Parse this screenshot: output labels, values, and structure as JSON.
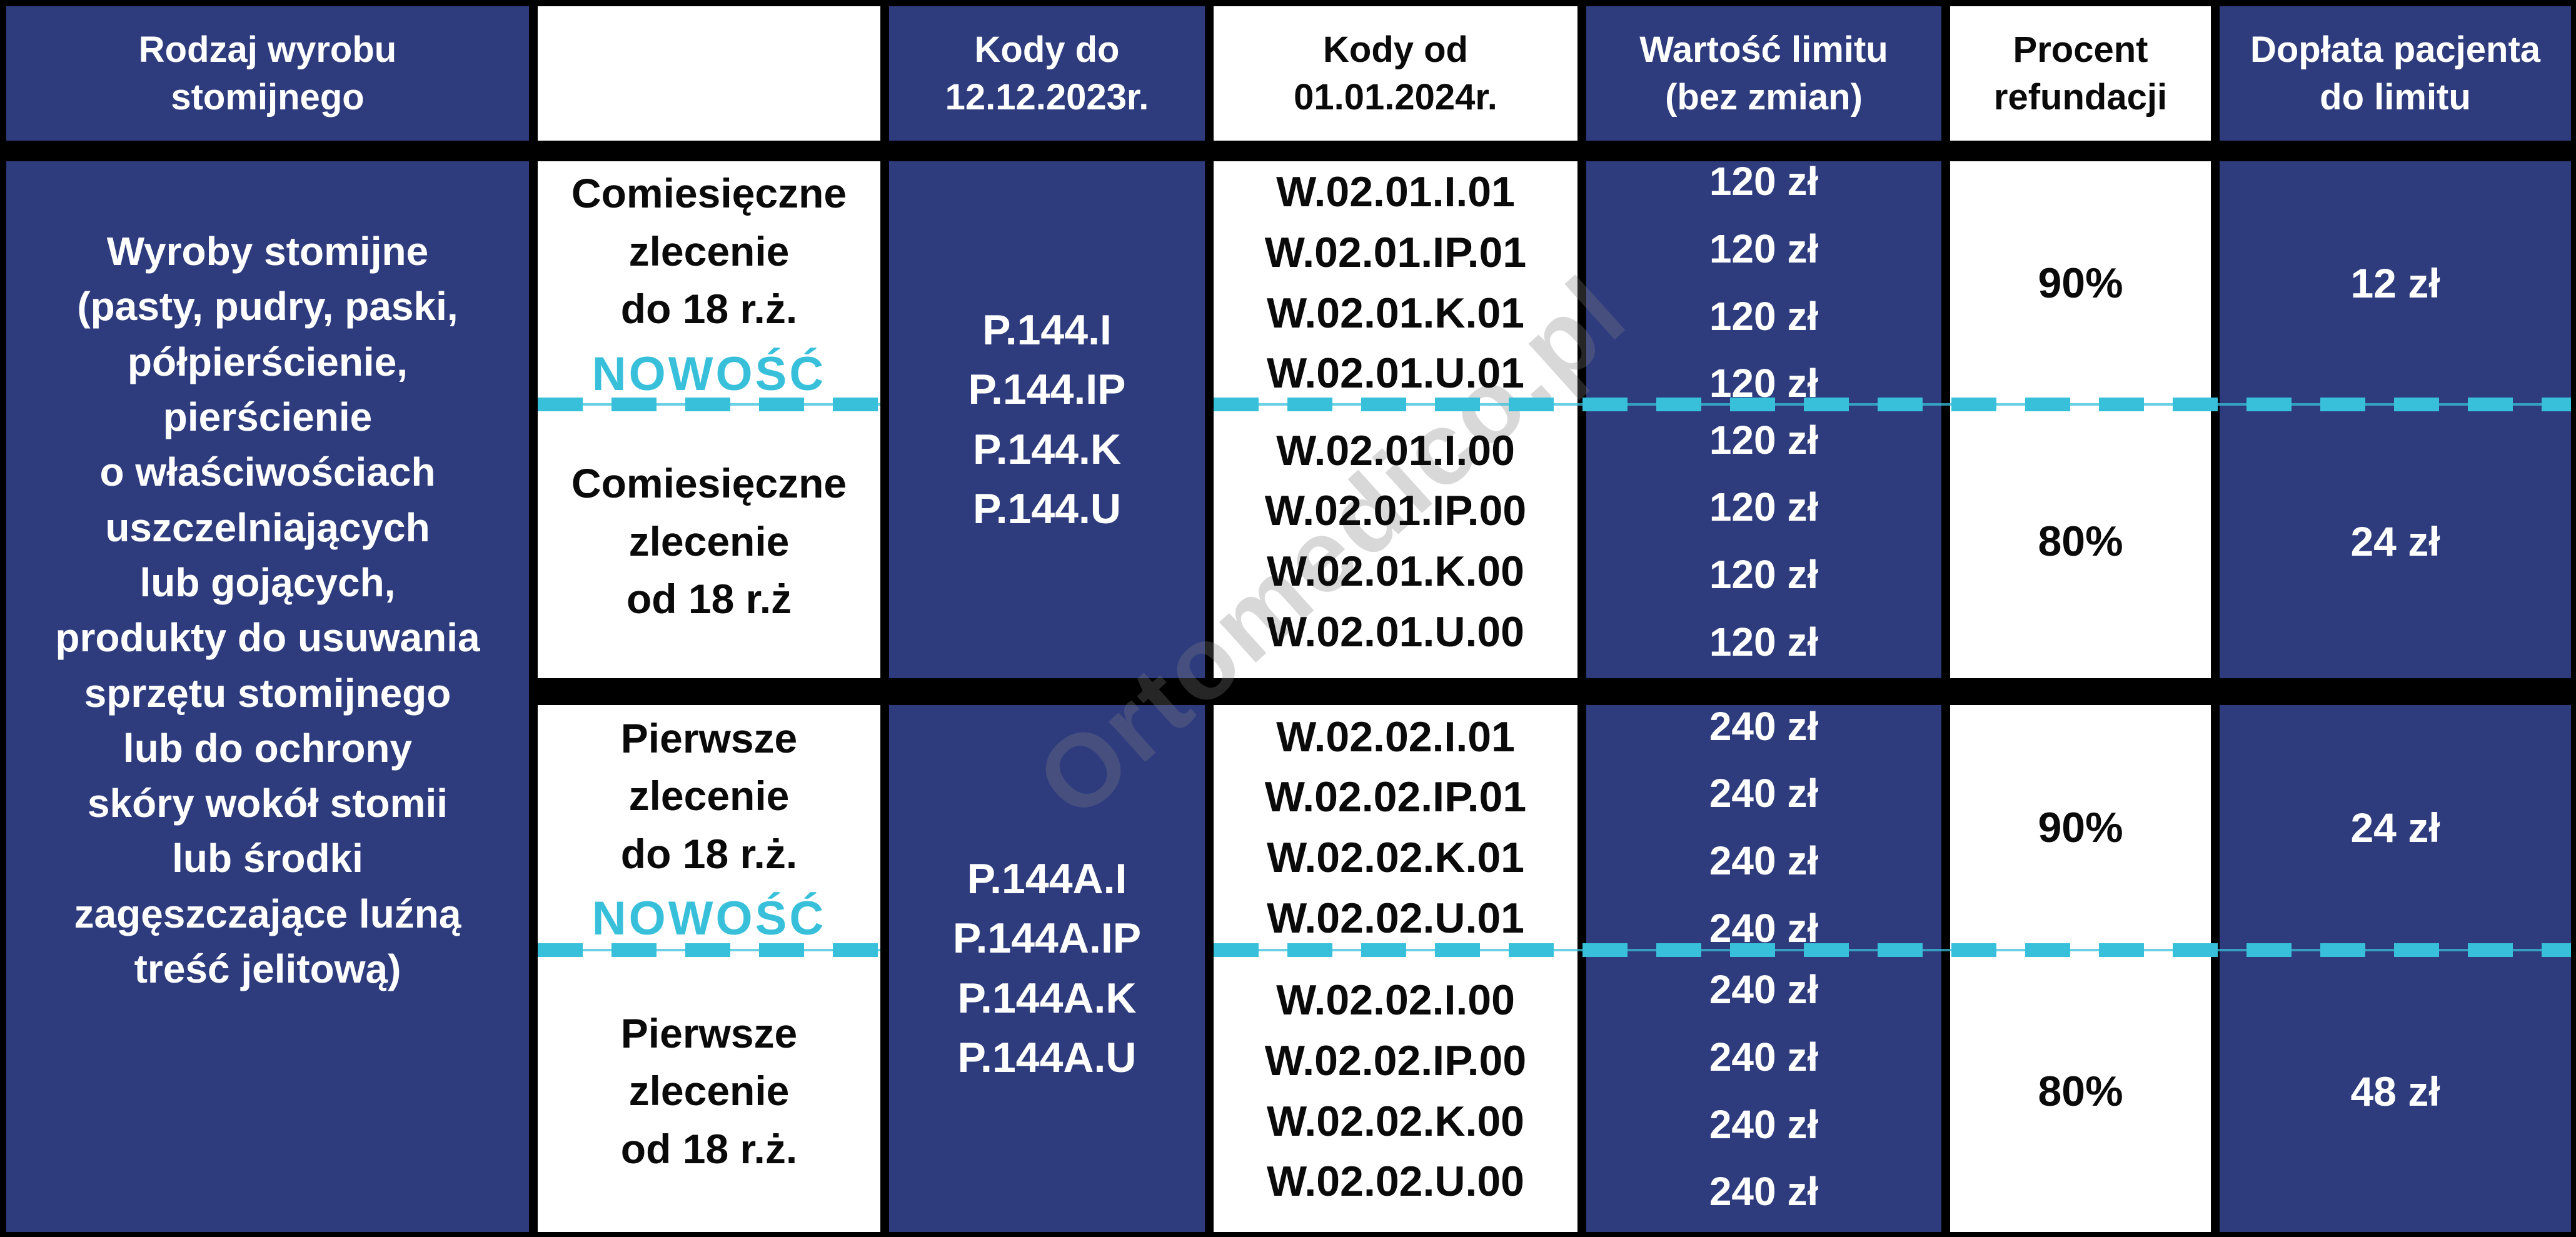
{
  "headers": [
    "Rodzaj wyrobu\nstomijnego",
    "",
    "Kody do\n12.12.2023r.",
    "Kody od\n01.01.2024r.",
    "Wartość limitu\n(bez zmian)",
    "Procent\nrefundacji",
    "Dopłata pacjenta\ndo limitu"
  ],
  "category": "Wyroby stomijne\n(pasty, pudry, paski,\npółpierścienie,\npierścienie\no właściwościach\nuszczelniających\nlub gojących,\nprodukty do usuwania\nsprzętu stomijnego\nlub do ochrony\nskóry wokół stomii\nlub środki\nzagęszczające luźną\ntreść jelitową)",
  "groups": [
    {
      "codes_old": "P.144.I\nP.144.IP\nP.144.K\nP.144.U",
      "rows": [
        {
          "order_type": "Comiesięczne\nzlecenie\ndo 18 r.ż.",
          "badge": "NOWOŚĆ",
          "codes_new": "W.02.01.I.01\nW.02.01.IP.01\nW.02.01.K.01\nW.02.01.U.01",
          "limit_values": "120 zł\n120 zł\n120 zł\n120 zł",
          "refund_percent": "90%",
          "patient_payment": "12 zł"
        },
        {
          "order_type": "Comiesięczne\nzlecenie\nod 18 r.ż",
          "codes_new": "W.02.01.I.00\nW.02.01.IP.00\nW.02.01.K.00\nW.02.01.U.00",
          "limit_values": "120 zł\n120 zł\n120 zł\n120 zł",
          "refund_percent": "80%",
          "patient_payment": "24 zł"
        }
      ]
    },
    {
      "codes_old": "P.144A.I\nP.144A.IP\nP.144A.K\nP.144A.U",
      "rows": [
        {
          "order_type": "Pierwsze\nzlecenie\ndo 18 r.ż.",
          "badge": "NOWOŚĆ",
          "codes_new": "W.02.02.I.01\nW.02.02.IP.01\nW.02.02.K.01\nW.02.02.U.01",
          "limit_values": "240 zł\n240 zł\n240 zł\n240 zł",
          "refund_percent": "90%",
          "patient_payment": "24 zł"
        },
        {
          "order_type": "Pierwsze\nzlecenie\nod 18 r.ż.",
          "codes_new": "W.02.02.I.00\nW.02.02.IP.00\nW.02.02.K.00\nW.02.02.U.00",
          "limit_values": "240 zł\n240 zł\n240 zł\n240 zł",
          "refund_percent": "80%",
          "patient_payment": "48 zł"
        }
      ]
    }
  ],
  "watermark": "Ortomedico.pl",
  "colors": {
    "navy": "#2e3c7e",
    "cyan": "#38c0da",
    "border": "#000000",
    "white": "#ffffff"
  }
}
